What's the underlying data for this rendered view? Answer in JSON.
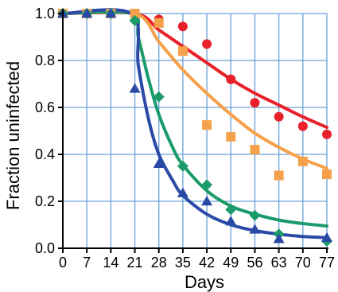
{
  "chart_data": {
    "type": "scatter",
    "title": "",
    "xlabel": "Days",
    "ylabel": "Fraction  uninfected",
    "xlim": [
      0,
      77
    ],
    "ylim": [
      0,
      1.0
    ],
    "x_ticks": [
      0,
      7,
      14,
      21,
      28,
      35,
      42,
      49,
      56,
      63,
      70,
      77
    ],
    "y_ticks": [
      0.0,
      0.2,
      0.4,
      0.6,
      0.8,
      1.0
    ],
    "x_tick_labels": [
      "0",
      "7",
      "14",
      "21",
      "28",
      "35",
      "42",
      "49",
      "56",
      "63",
      "70",
      "77"
    ],
    "y_tick_labels": [
      "0.0",
      "0.2",
      "0.4",
      "0.6",
      "0.8",
      "1.0"
    ],
    "grid": true,
    "legend": "none",
    "series": [
      {
        "marker": "circle",
        "color": "#e8202a",
        "points": [
          [
            0,
            1.0
          ],
          [
            7,
            1.0
          ],
          [
            14,
            1.0
          ],
          [
            21,
            1.0
          ],
          [
            28,
            0.975
          ],
          [
            35,
            0.945
          ],
          [
            42,
            0.87
          ],
          [
            49,
            0.72
          ],
          [
            56,
            0.62
          ],
          [
            63,
            0.56
          ],
          [
            70,
            0.52
          ],
          [
            77,
            0.485
          ]
        ],
        "fit_curve": [
          [
            0,
            1.0
          ],
          [
            21,
            1.0
          ],
          [
            28,
            0.93
          ],
          [
            35,
            0.86
          ],
          [
            42,
            0.79
          ],
          [
            49,
            0.72
          ],
          [
            56,
            0.66
          ],
          [
            63,
            0.61
          ],
          [
            70,
            0.56
          ],
          [
            77,
            0.515
          ]
        ]
      },
      {
        "marker": "square",
        "color": "#f5a04a",
        "points": [
          [
            0,
            1.0
          ],
          [
            7,
            1.0
          ],
          [
            14,
            1.0
          ],
          [
            21,
            1.0
          ],
          [
            28,
            0.96
          ],
          [
            35,
            0.84
          ],
          [
            42,
            0.525
          ],
          [
            49,
            0.475
          ],
          [
            56,
            0.42
          ],
          [
            63,
            0.31
          ],
          [
            70,
            0.37
          ],
          [
            77,
            0.315
          ]
        ],
        "fit_curve": [
          [
            0,
            1.0
          ],
          [
            21,
            1.0
          ],
          [
            28,
            0.88
          ],
          [
            35,
            0.76
          ],
          [
            42,
            0.66
          ],
          [
            49,
            0.57
          ],
          [
            56,
            0.49
          ],
          [
            63,
            0.43
          ],
          [
            70,
            0.38
          ],
          [
            77,
            0.34
          ]
        ]
      },
      {
        "marker": "diamond",
        "color": "#1b9b6a",
        "points": [
          [
            0,
            1.0
          ],
          [
            7,
            1.0
          ],
          [
            14,
            1.0
          ],
          [
            21,
            0.97
          ],
          [
            28,
            0.645
          ],
          [
            35,
            0.35
          ],
          [
            42,
            0.27
          ],
          [
            49,
            0.165
          ],
          [
            56,
            0.14
          ],
          [
            63,
            0.06
          ],
          [
            77,
            0.03
          ]
        ],
        "fit_curve": [
          [
            0,
            1.0
          ],
          [
            20,
            1.0
          ],
          [
            22,
            0.9
          ],
          [
            25,
            0.72
          ],
          [
            28,
            0.57
          ],
          [
            32,
            0.43
          ],
          [
            35,
            0.355
          ],
          [
            42,
            0.245
          ],
          [
            49,
            0.18
          ],
          [
            56,
            0.145
          ],
          [
            63,
            0.12
          ],
          [
            70,
            0.105
          ],
          [
            77,
            0.095
          ]
        ]
      },
      {
        "marker": "triangle",
        "color": "#2b4aa6",
        "points": [
          [
            0,
            1.0
          ],
          [
            7,
            1.0
          ],
          [
            14,
            1.0
          ],
          [
            21,
            0.68
          ],
          [
            28,
            0.36
          ],
          [
            35,
            0.235
          ],
          [
            42,
            0.2
          ],
          [
            49,
            0.115
          ],
          [
            56,
            0.08
          ],
          [
            63,
            0.04
          ],
          [
            77,
            0.045
          ]
        ],
        "fit_curve": [
          [
            0,
            1.0
          ],
          [
            20,
            1.0
          ],
          [
            22,
            0.78
          ],
          [
            25,
            0.55
          ],
          [
            28,
            0.4
          ],
          [
            32,
            0.29
          ],
          [
            35,
            0.225
          ],
          [
            42,
            0.145
          ],
          [
            49,
            0.1
          ],
          [
            56,
            0.075
          ],
          [
            63,
            0.06
          ],
          [
            70,
            0.05
          ],
          [
            77,
            0.045
          ]
        ]
      }
    ]
  }
}
